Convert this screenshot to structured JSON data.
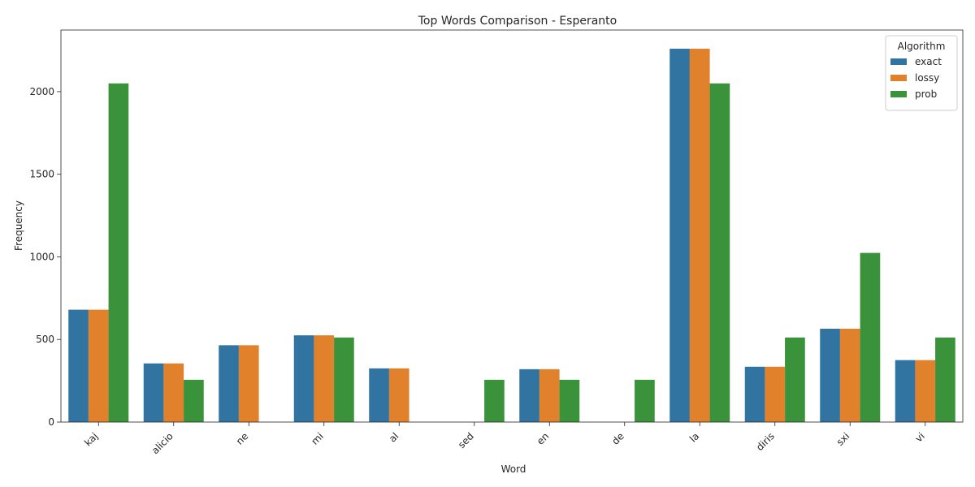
{
  "chart_data": {
    "type": "bar",
    "title": "Top Words Comparison - Esperanto",
    "xlabel": "Word",
    "ylabel": "Frequency",
    "categories": [
      "kaj",
      "alicio",
      "ne",
      "mi",
      "al",
      "sed",
      "en",
      "de",
      "la",
      "diris",
      "sxi",
      "vi"
    ],
    "series": [
      {
        "name": "exact",
        "color": "#3274a1",
        "values": [
          680,
          355,
          465,
          525,
          325,
          0,
          320,
          0,
          2260,
          335,
          565,
          375
        ]
      },
      {
        "name": "lossy",
        "color": "#e1812c",
        "values": [
          680,
          355,
          465,
          525,
          325,
          0,
          320,
          0,
          2260,
          335,
          565,
          375
        ]
      },
      {
        "name": "prob",
        "color": "#3a923a",
        "values": [
          2050,
          256,
          0,
          512,
          0,
          256,
          256,
          256,
          2050,
          512,
          1024,
          512
        ]
      }
    ],
    "ylim": [
      0,
      2373
    ],
    "yticks": [
      0,
      500,
      1000,
      1500,
      2000
    ],
    "legend": {
      "title": "Algorithm",
      "placement": "top-right"
    },
    "grid": false
  }
}
